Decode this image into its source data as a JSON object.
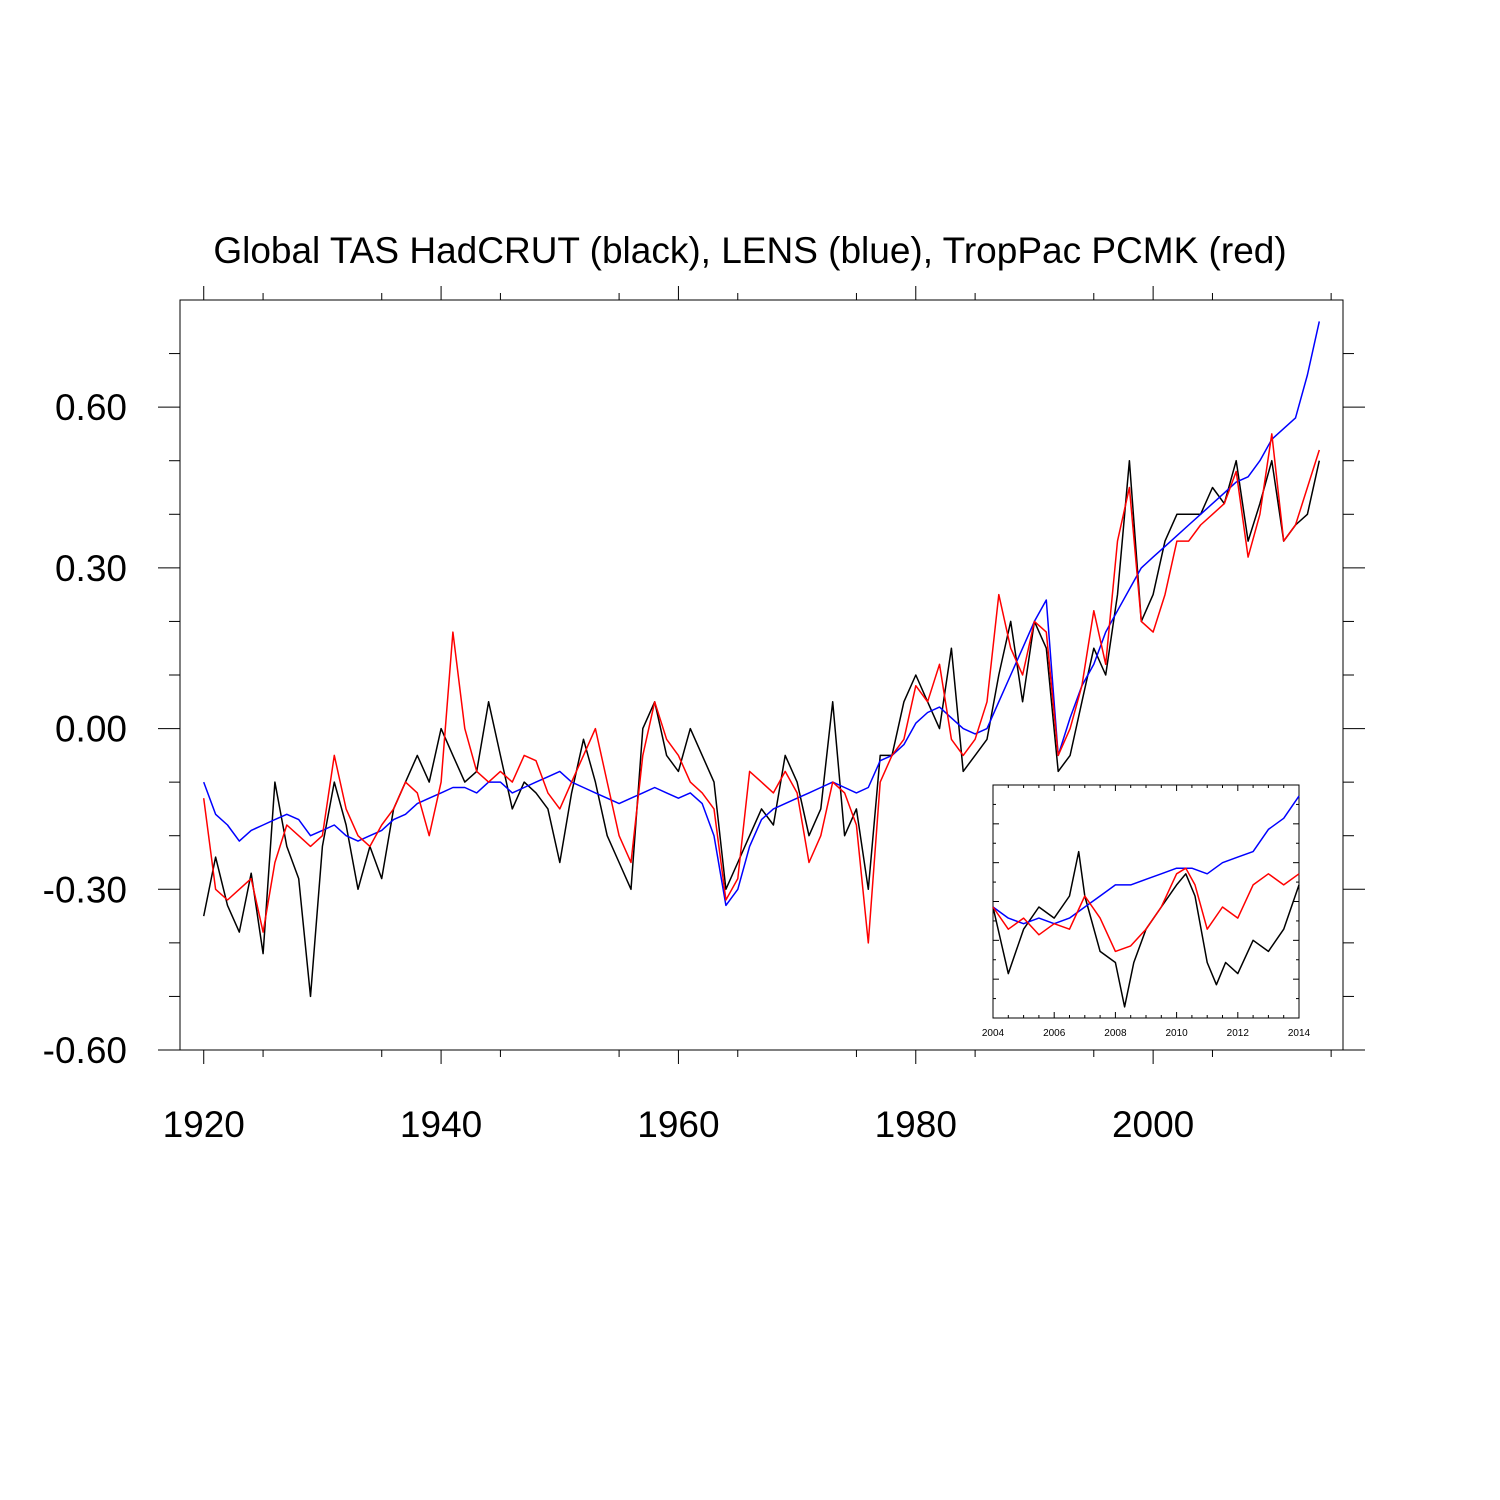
{
  "chart_data": [
    {
      "type": "line",
      "title": "Global TAS HadCRUT (black), LENS (blue), TropPac PCMK (red)",
      "xlabel": "",
      "ylabel": "",
      "xlim": [
        1918,
        2016
      ],
      "ylim": [
        -0.6,
        0.8
      ],
      "xticks": [
        1920,
        1940,
        1960,
        1980,
        2000
      ],
      "xtick_labels": [
        "1920",
        "1940",
        "1960",
        "1980",
        "2000"
      ],
      "yticks": [
        -0.6,
        -0.3,
        0.0,
        0.3,
        0.6
      ],
      "ytick_labels": [
        "-0.60",
        "-0.30",
        "0.00",
        "0.30",
        "0.60"
      ],
      "grid": false,
      "series": [
        {
          "name": "HadCRUT",
          "color": "#000000",
          "x": [
            1920,
            1921,
            1922,
            1923,
            1924,
            1925,
            1926,
            1927,
            1928,
            1929,
            1930,
            1931,
            1932,
            1933,
            1934,
            1935,
            1936,
            1937,
            1938,
            1939,
            1940,
            1941,
            1942,
            1943,
            1944,
            1945,
            1946,
            1947,
            1948,
            1949,
            1950,
            1951,
            1952,
            1953,
            1954,
            1955,
            1956,
            1957,
            1958,
            1959,
            1960,
            1961,
            1962,
            1963,
            1964,
            1965,
            1966,
            1967,
            1968,
            1969,
            1970,
            1971,
            1972,
            1973,
            1974,
            1975,
            1976,
            1977,
            1978,
            1979,
            1980,
            1981,
            1982,
            1983,
            1984,
            1985,
            1986,
            1987,
            1988,
            1989,
            1990,
            1991,
            1992,
            1993,
            1994,
            1995,
            1996,
            1997,
            1998,
            1999,
            2000,
            2001,
            2002,
            2003,
            2004,
            2005,
            2006,
            2007,
            2008,
            2009,
            2010,
            2011,
            2012,
            2013,
            2014
          ],
          "values": [
            -0.35,
            -0.24,
            -0.33,
            -0.38,
            -0.27,
            -0.42,
            -0.1,
            -0.22,
            -0.28,
            -0.5,
            -0.22,
            -0.1,
            -0.18,
            -0.3,
            -0.22,
            -0.28,
            -0.15,
            -0.1,
            -0.05,
            -0.1,
            0.0,
            -0.05,
            -0.1,
            -0.08,
            0.05,
            -0.05,
            -0.15,
            -0.1,
            -0.12,
            -0.15,
            -0.25,
            -0.12,
            -0.02,
            -0.1,
            -0.2,
            -0.25,
            -0.3,
            0.0,
            0.05,
            -0.05,
            -0.08,
            0.0,
            -0.05,
            -0.1,
            -0.3,
            -0.25,
            -0.2,
            -0.15,
            -0.18,
            -0.05,
            -0.1,
            -0.2,
            -0.15,
            0.05,
            -0.2,
            -0.15,
            -0.3,
            -0.05,
            -0.05,
            0.05,
            0.1,
            0.05,
            0.0,
            0.15,
            -0.08,
            -0.05,
            -0.02,
            0.1,
            0.2,
            0.05,
            0.2,
            0.15,
            -0.08,
            -0.05,
            0.05,
            0.15,
            0.1,
            0.25,
            0.5,
            0.2,
            0.25,
            0.35,
            0.4,
            0.4,
            0.4,
            0.45,
            0.42,
            0.5,
            0.35,
            0.42,
            0.5,
            0.35,
            0.38,
            0.4,
            0.5
          ]
        },
        {
          "name": "LENS",
          "color": "#0000ff",
          "x": [
            1920,
            1921,
            1922,
            1923,
            1924,
            1925,
            1926,
            1927,
            1928,
            1929,
            1930,
            1931,
            1932,
            1933,
            1934,
            1935,
            1936,
            1937,
            1938,
            1939,
            1940,
            1941,
            1942,
            1943,
            1944,
            1945,
            1946,
            1947,
            1948,
            1949,
            1950,
            1951,
            1952,
            1953,
            1954,
            1955,
            1956,
            1957,
            1958,
            1959,
            1960,
            1961,
            1962,
            1963,
            1964,
            1965,
            1966,
            1967,
            1968,
            1969,
            1970,
            1971,
            1972,
            1973,
            1974,
            1975,
            1976,
            1977,
            1978,
            1979,
            1980,
            1981,
            1982,
            1983,
            1984,
            1985,
            1986,
            1987,
            1988,
            1989,
            1990,
            1991,
            1992,
            1993,
            1994,
            1995,
            1996,
            1997,
            1998,
            1999,
            2000,
            2001,
            2002,
            2003,
            2004,
            2005,
            2006,
            2007,
            2008,
            2009,
            2010,
            2011,
            2012,
            2013,
            2014
          ],
          "values": [
            -0.1,
            -0.16,
            -0.18,
            -0.21,
            -0.19,
            -0.18,
            -0.17,
            -0.16,
            -0.17,
            -0.2,
            -0.19,
            -0.18,
            -0.2,
            -0.21,
            -0.2,
            -0.19,
            -0.17,
            -0.16,
            -0.14,
            -0.13,
            -0.12,
            -0.11,
            -0.11,
            -0.12,
            -0.1,
            -0.1,
            -0.12,
            -0.11,
            -0.1,
            -0.09,
            -0.08,
            -0.1,
            -0.11,
            -0.12,
            -0.13,
            -0.14,
            -0.13,
            -0.12,
            -0.11,
            -0.12,
            -0.13,
            -0.12,
            -0.14,
            -0.2,
            -0.33,
            -0.3,
            -0.22,
            -0.17,
            -0.15,
            -0.14,
            -0.13,
            -0.12,
            -0.11,
            -0.1,
            -0.11,
            -0.12,
            -0.11,
            -0.06,
            -0.05,
            -0.03,
            0.01,
            0.03,
            0.04,
            0.02,
            0.0,
            -0.01,
            0.0,
            0.05,
            0.1,
            0.15,
            0.2,
            0.24,
            -0.05,
            0.02,
            0.08,
            0.12,
            0.18,
            0.22,
            0.26,
            0.3,
            0.32,
            0.34,
            0.36,
            0.38,
            0.4,
            0.42,
            0.44,
            0.46,
            0.47,
            0.5,
            0.54,
            0.56,
            0.58,
            0.66,
            0.76
          ]
        },
        {
          "name": "TropPac PCMK",
          "color": "#ff0000",
          "x": [
            1920,
            1921,
            1922,
            1923,
            1924,
            1925,
            1926,
            1927,
            1928,
            1929,
            1930,
            1931,
            1932,
            1933,
            1934,
            1935,
            1936,
            1937,
            1938,
            1939,
            1940,
            1941,
            1942,
            1943,
            1944,
            1945,
            1946,
            1947,
            1948,
            1949,
            1950,
            1951,
            1952,
            1953,
            1954,
            1955,
            1956,
            1957,
            1958,
            1959,
            1960,
            1961,
            1962,
            1963,
            1964,
            1965,
            1966,
            1967,
            1968,
            1969,
            1970,
            1971,
            1972,
            1973,
            1974,
            1975,
            1976,
            1977,
            1978,
            1979,
            1980,
            1981,
            1982,
            1983,
            1984,
            1985,
            1986,
            1987,
            1988,
            1989,
            1990,
            1991,
            1992,
            1993,
            1994,
            1995,
            1996,
            1997,
            1998,
            1999,
            2000,
            2001,
            2002,
            2003,
            2004,
            2005,
            2006,
            2007,
            2008,
            2009,
            2010,
            2011,
            2012,
            2013,
            2014
          ],
          "values": [
            -0.13,
            -0.3,
            -0.32,
            -0.3,
            -0.28,
            -0.38,
            -0.25,
            -0.18,
            -0.2,
            -0.22,
            -0.2,
            -0.05,
            -0.15,
            -0.2,
            -0.22,
            -0.18,
            -0.15,
            -0.1,
            -0.12,
            -0.2,
            -0.1,
            0.18,
            0.0,
            -0.08,
            -0.1,
            -0.08,
            -0.1,
            -0.05,
            -0.06,
            -0.12,
            -0.15,
            -0.1,
            -0.05,
            0.0,
            -0.1,
            -0.2,
            -0.25,
            -0.05,
            0.05,
            -0.02,
            -0.05,
            -0.1,
            -0.12,
            -0.15,
            -0.32,
            -0.28,
            -0.08,
            -0.1,
            -0.12,
            -0.08,
            -0.12,
            -0.25,
            -0.2,
            -0.1,
            -0.12,
            -0.18,
            -0.4,
            -0.1,
            -0.05,
            -0.02,
            0.08,
            0.05,
            0.12,
            -0.02,
            -0.05,
            -0.02,
            0.05,
            0.25,
            0.15,
            0.1,
            0.2,
            0.18,
            -0.05,
            0.0,
            0.08,
            0.22,
            0.12,
            0.35,
            0.45,
            0.2,
            0.18,
            0.25,
            0.35,
            0.35,
            0.38,
            0.4,
            0.42,
            0.48,
            0.32,
            0.4,
            0.55,
            0.35,
            0.38,
            0.45,
            0.52
          ]
        }
      ]
    },
    {
      "type": "line",
      "title": "",
      "inset": true,
      "legend_position": "lower-right inset",
      "xlim": [
        2004,
        2014
      ],
      "ylim": [
        -0.6,
        0.8
      ],
      "xticks": [
        2004,
        2006,
        2008,
        2010,
        2012,
        2014
      ],
      "xtick_labels": [
        "2004",
        "2006",
        "2008",
        "2010",
        "2012",
        "2014"
      ],
      "series": [
        {
          "name": "HadCRUT",
          "color": "#000000",
          "x": [
            2004.0,
            2004.5,
            2005.0,
            2005.5,
            2006.0,
            2006.5,
            2006.8,
            2007.0,
            2007.5,
            2008.0,
            2008.3,
            2008.6,
            2009.0,
            2009.5,
            2010.0,
            2010.3,
            2010.6,
            2011.0,
            2011.3,
            2011.6,
            2012.0,
            2012.5,
            2013.0,
            2013.5,
            2014.0
          ],
          "values": [
            0.4,
            0.28,
            0.36,
            0.4,
            0.38,
            0.42,
            0.5,
            0.42,
            0.32,
            0.3,
            0.22,
            0.3,
            0.36,
            0.4,
            0.44,
            0.46,
            0.42,
            0.3,
            0.26,
            0.3,
            0.28,
            0.34,
            0.32,
            0.36,
            0.44
          ]
        },
        {
          "name": "LENS",
          "color": "#0000ff",
          "x": [
            2004.0,
            2004.5,
            2005.0,
            2005.5,
            2006.0,
            2006.5,
            2007.0,
            2007.5,
            2008.0,
            2008.5,
            2009.0,
            2009.5,
            2010.0,
            2010.5,
            2011.0,
            2011.5,
            2012.0,
            2012.5,
            2013.0,
            2013.5,
            2014.0
          ],
          "values": [
            0.4,
            0.38,
            0.37,
            0.38,
            0.37,
            0.38,
            0.4,
            0.42,
            0.44,
            0.44,
            0.45,
            0.46,
            0.47,
            0.47,
            0.46,
            0.48,
            0.49,
            0.5,
            0.54,
            0.56,
            0.6
          ]
        },
        {
          "name": "TropPac PCMK",
          "color": "#ff0000",
          "x": [
            2004.0,
            2004.5,
            2005.0,
            2005.5,
            2006.0,
            2006.5,
            2007.0,
            2007.5,
            2008.0,
            2008.5,
            2009.0,
            2009.5,
            2010.0,
            2010.3,
            2010.6,
            2011.0,
            2011.5,
            2012.0,
            2012.5,
            2013.0,
            2013.5,
            2014.0
          ],
          "values": [
            0.4,
            0.36,
            0.38,
            0.35,
            0.37,
            0.36,
            0.42,
            0.38,
            0.32,
            0.33,
            0.36,
            0.4,
            0.46,
            0.47,
            0.44,
            0.36,
            0.4,
            0.38,
            0.44,
            0.46,
            0.44,
            0.46
          ]
        }
      ]
    }
  ]
}
